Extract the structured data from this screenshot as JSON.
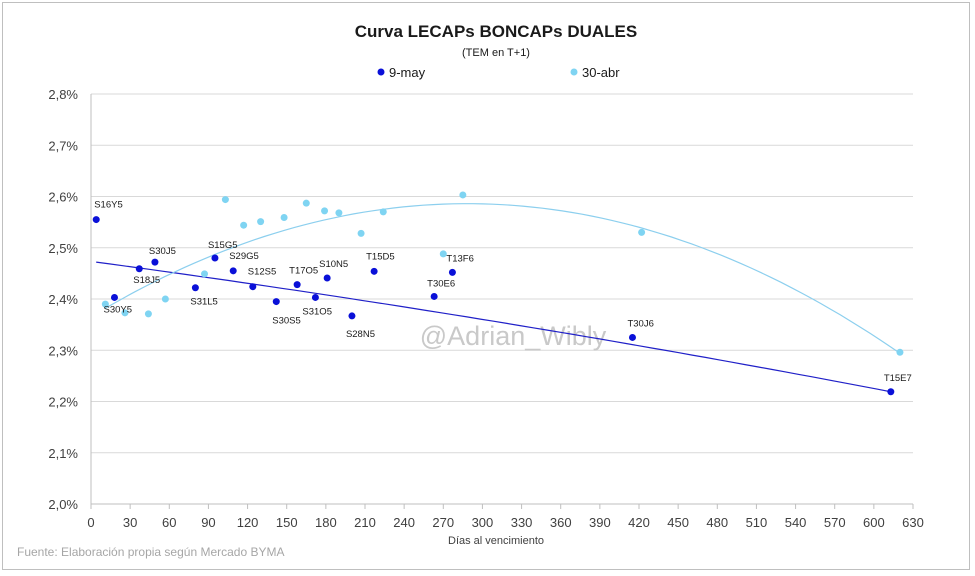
{
  "chart_data": {
    "type": "scatter",
    "title": "Curva LECAPs BONCAPs DUALES",
    "subtitle": "(TEM en T+1)",
    "xlabel": "Días al vencimiento",
    "ylabel": "",
    "xlim": [
      0,
      630
    ],
    "ylim": [
      2.0,
      2.8
    ],
    "x_ticks": [
      0,
      30,
      60,
      90,
      120,
      150,
      180,
      210,
      240,
      270,
      300,
      330,
      360,
      390,
      420,
      450,
      480,
      510,
      540,
      570,
      600,
      630
    ],
    "y_ticks": [
      {
        "value": 2.0,
        "label": "2,0%"
      },
      {
        "value": 2.1,
        "label": "2,1%"
      },
      {
        "value": 2.2,
        "label": "2,2%"
      },
      {
        "value": 2.3,
        "label": "2,3%"
      },
      {
        "value": 2.4,
        "label": "2,4%"
      },
      {
        "value": 2.5,
        "label": "2,5%"
      },
      {
        "value": 2.6,
        "label": "2,6%"
      },
      {
        "value": 2.7,
        "label": "2,7%"
      },
      {
        "value": 2.8,
        "label": "2,8%"
      }
    ],
    "grid": {
      "horizontal": true,
      "vertical": false
    },
    "legend_position": "top",
    "series": [
      {
        "name": "9-may",
        "color": "#0a10d8",
        "trend_color": "#2020c8",
        "points": [
          {
            "x": 4,
            "y": 2.555,
            "label": "S16Y5"
          },
          {
            "x": 18,
            "y": 2.403,
            "label": "S30Y5"
          },
          {
            "x": 37,
            "y": 2.459,
            "label": "S18J5"
          },
          {
            "x": 49,
            "y": 2.472,
            "label": "S30J5"
          },
          {
            "x": 80,
            "y": 2.422,
            "label": "S31L5"
          },
          {
            "x": 95,
            "y": 2.48,
            "label": "S15G5"
          },
          {
            "x": 109,
            "y": 2.455,
            "label": "S29G5"
          },
          {
            "x": 124,
            "y": 2.424,
            "label": "S12S5"
          },
          {
            "x": 142,
            "y": 2.395,
            "label": "S30S5"
          },
          {
            "x": 158,
            "y": 2.428,
            "label": "T17O5"
          },
          {
            "x": 172,
            "y": 2.403,
            "label": "S31O5"
          },
          {
            "x": 181,
            "y": 2.441,
            "label": "S10N5"
          },
          {
            "x": 200,
            "y": 2.367,
            "label": "S28N5"
          },
          {
            "x": 217,
            "y": 2.454,
            "label": "T15D5"
          },
          {
            "x": 263,
            "y": 2.405,
            "label": "T30E6"
          },
          {
            "x": 277,
            "y": 2.452,
            "label": "T13F6"
          },
          {
            "x": 415,
            "y": 2.325,
            "label": "T30J6"
          },
          {
            "x": 613,
            "y": 2.219,
            "label": "T15E7"
          }
        ],
        "trend": {
          "x0": 4,
          "y0": 2.472,
          "x1": 613,
          "y1": 2.219,
          "curvature": -1.2e-07
        }
      },
      {
        "name": "30-abr",
        "color": "#7fd4f2",
        "trend_color": "#8ccfee",
        "points": [
          {
            "x": 11,
            "y": 2.39
          },
          {
            "x": 26,
            "y": 2.373
          },
          {
            "x": 44,
            "y": 2.371
          },
          {
            "x": 57,
            "y": 2.4
          },
          {
            "x": 87,
            "y": 2.449
          },
          {
            "x": 103,
            "y": 2.594
          },
          {
            "x": 117,
            "y": 2.544
          },
          {
            "x": 130,
            "y": 2.551
          },
          {
            "x": 148,
            "y": 2.559
          },
          {
            "x": 165,
            "y": 2.587
          },
          {
            "x": 179,
            "y": 2.572
          },
          {
            "x": 190,
            "y": 2.568
          },
          {
            "x": 207,
            "y": 2.528
          },
          {
            "x": 224,
            "y": 2.57
          },
          {
            "x": 270,
            "y": 2.488
          },
          {
            "x": 285,
            "y": 2.603
          },
          {
            "x": 422,
            "y": 2.53
          },
          {
            "x": 620,
            "y": 2.296
          }
        ],
        "trend": {
          "x0": 11,
          "y0": 2.382,
          "x1": 620,
          "y1": 2.294,
          "peak_x": 285,
          "peak_y": 2.586
        }
      }
    ],
    "annotations": [
      "@Adrian_Wibly"
    ],
    "source": "Fuente: Elaboración propia según Mercado BYMA"
  }
}
